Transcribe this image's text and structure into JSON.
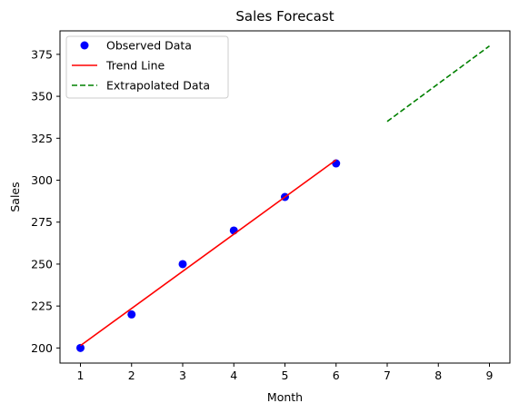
{
  "chart_data": {
    "type": "line",
    "title": "Sales Forecast",
    "xlabel": "Month",
    "ylabel": "Sales",
    "xlim": [
      0.6,
      9.4
    ],
    "ylim": [
      191,
      389
    ],
    "xticks": [
      1,
      2,
      3,
      4,
      5,
      6,
      7,
      8,
      9
    ],
    "yticks": [
      200,
      225,
      250,
      275,
      300,
      325,
      350,
      375
    ],
    "grid": false,
    "legend_position": "top-left",
    "series": [
      {
        "name": "Observed Data",
        "kind": "scatter",
        "color": "#0000ff",
        "x": [
          1,
          2,
          3,
          4,
          5,
          6
        ],
        "y": [
          200,
          220,
          250,
          270,
          290,
          310
        ]
      },
      {
        "name": "Trend Line",
        "kind": "line",
        "style": "solid",
        "color": "#ff0000",
        "x": [
          1,
          6
        ],
        "y": [
          201.4,
          312.1
        ]
      },
      {
        "name": "Extrapolated Data",
        "kind": "line",
        "style": "dashed",
        "color": "#008000",
        "x": [
          7,
          8,
          9
        ],
        "y": [
          335,
          357.5,
          380
        ]
      }
    ]
  }
}
